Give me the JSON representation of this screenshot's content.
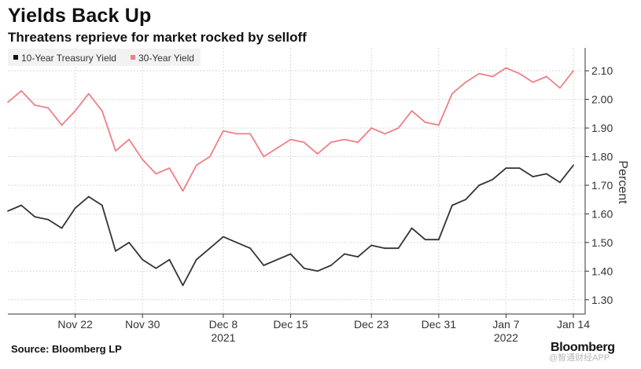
{
  "header": {
    "title": "Yields Back Up",
    "subtitle": "Threatens reprieve for market rocked by selloff"
  },
  "footer": {
    "source": "Source: Bloomberg LP",
    "brand": "Bloomberg",
    "watermark": "@智通财经APP"
  },
  "chart_data": {
    "type": "line",
    "title": "Yields Back Up",
    "subtitle": "Threatens reprieve for market rocked by selloff",
    "xlabel": "",
    "ylabel": "Percent",
    "ylim": [
      1.25,
      2.18
    ],
    "yticks": [
      1.3,
      1.4,
      1.5,
      1.6,
      1.7,
      1.8,
      1.9,
      2.0,
      2.1
    ],
    "ytick_labels": [
      "1.30",
      "1.40",
      "1.50",
      "1.60",
      "1.70",
      "1.80",
      "1.90",
      "2.00",
      "2.10"
    ],
    "grid": true,
    "legend_position": "top-left",
    "x_tick_labels": [
      {
        "label": "Nov 22",
        "index": 5
      },
      {
        "label": "Nov 30",
        "index": 10
      },
      {
        "label": "Dec 8",
        "index": 16,
        "sub": "2021"
      },
      {
        "label": "Dec 15",
        "index": 21
      },
      {
        "label": "Dec 23",
        "index": 27
      },
      {
        "label": "Dec 31",
        "index": 32
      },
      {
        "label": "Jan 7",
        "index": 37,
        "sub": "2022"
      },
      {
        "label": "Jan 14",
        "index": 42
      }
    ],
    "series": [
      {
        "name": "10-Year Treasury Yield",
        "color": "#333333",
        "values": [
          1.61,
          1.63,
          1.59,
          1.58,
          1.55,
          1.62,
          1.66,
          1.63,
          1.47,
          1.5,
          1.44,
          1.41,
          1.44,
          1.35,
          1.44,
          1.48,
          1.52,
          1.5,
          1.48,
          1.42,
          1.44,
          1.46,
          1.41,
          1.4,
          1.42,
          1.46,
          1.45,
          1.49,
          1.48,
          1.48,
          1.55,
          1.51,
          1.51,
          1.63,
          1.65,
          1.7,
          1.72,
          1.76,
          1.76,
          1.73,
          1.74,
          1.71,
          1.77
        ]
      },
      {
        "name": "30-Year Yield",
        "color": "#f07f86",
        "values": [
          1.99,
          2.03,
          1.98,
          1.97,
          1.91,
          1.96,
          2.02,
          1.96,
          1.82,
          1.86,
          1.79,
          1.74,
          1.76,
          1.68,
          1.77,
          1.8,
          1.89,
          1.88,
          1.88,
          1.8,
          1.83,
          1.86,
          1.85,
          1.81,
          1.85,
          1.86,
          1.85,
          1.9,
          1.88,
          1.9,
          1.96,
          1.92,
          1.91,
          2.02,
          2.06,
          2.09,
          2.08,
          2.11,
          2.09,
          2.06,
          2.08,
          2.04,
          2.1
        ]
      }
    ]
  }
}
